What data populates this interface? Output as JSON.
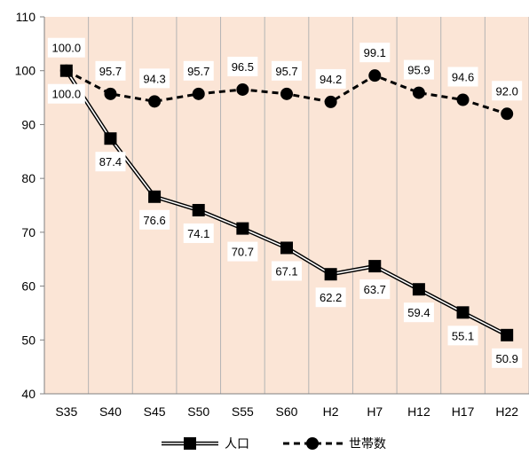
{
  "chart_data": {
    "type": "line",
    "title": "",
    "xlabel": "",
    "ylabel": "",
    "categories": [
      "S35",
      "S40",
      "S45",
      "S50",
      "S55",
      "S60",
      "H2",
      "H7",
      "H12",
      "H17",
      "H22"
    ],
    "ylim": [
      40,
      110
    ],
    "yticks": [
      40,
      50,
      60,
      70,
      80,
      90,
      100,
      110
    ],
    "grid": "vertical",
    "background_color": "#fbe5d6",
    "legend_position": "bottom",
    "series": [
      {
        "name": "人口",
        "marker": "square",
        "line_style": "double",
        "color": "#000000",
        "values": [
          100.0,
          87.4,
          76.6,
          74.1,
          70.7,
          67.1,
          62.2,
          63.7,
          59.4,
          55.1,
          50.9
        ],
        "labels": [
          "100.0",
          "87.4",
          "76.6",
          "74.1",
          "70.7",
          "67.1",
          "62.2",
          "63.7",
          "59.4",
          "55.1",
          "50.9"
        ]
      },
      {
        "name": "世帯数",
        "marker": "circle",
        "line_style": "dashed",
        "color": "#000000",
        "values": [
          100.0,
          95.7,
          94.3,
          95.7,
          96.5,
          95.7,
          94.2,
          99.1,
          95.9,
          94.6,
          92.0
        ],
        "labels": [
          "100.0",
          "95.7",
          "94.3",
          "95.7",
          "96.5",
          "95.7",
          "94.2",
          "99.1",
          "95.9",
          "94.6",
          "92.0"
        ]
      }
    ]
  }
}
